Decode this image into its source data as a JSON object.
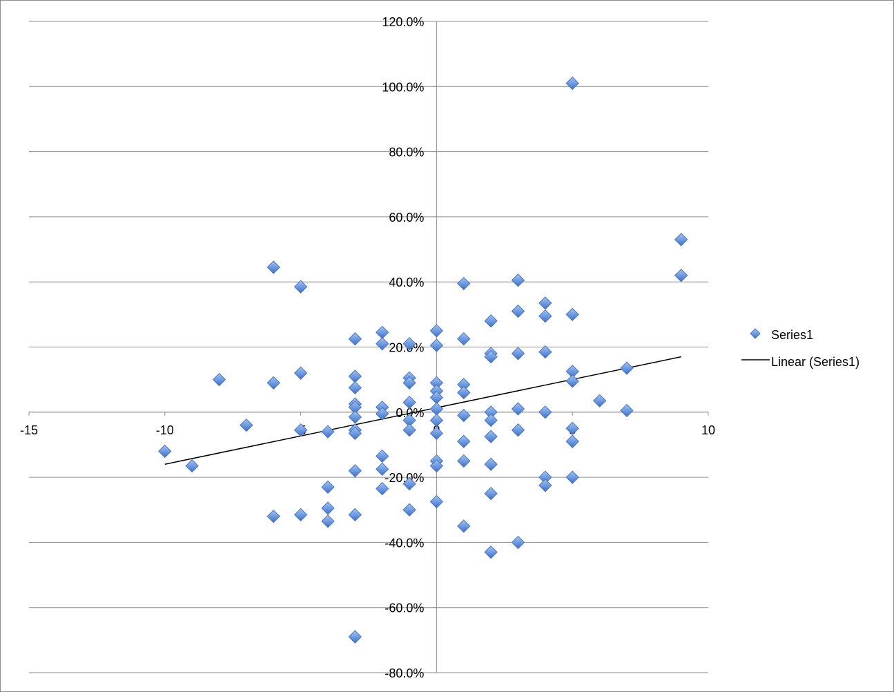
{
  "chart_data": {
    "type": "scatter",
    "title": "",
    "xlabel": "",
    "ylabel": "",
    "xlim": [
      -15,
      10
    ],
    "ylim": [
      -0.8,
      1.2
    ],
    "x_ticks": [
      -15,
      -10,
      -5,
      0,
      5,
      10
    ],
    "x_tick_labels": [
      "-15",
      "-10",
      "-5",
      "0",
      "5",
      "10"
    ],
    "y_ticks": [
      1.2,
      1.0,
      0.8,
      0.6,
      0.4,
      0.2,
      0.0,
      -0.2,
      -0.4,
      -0.6,
      -0.8
    ],
    "y_tick_labels": [
      "120.0%",
      "100.0%",
      "80.0%",
      "60.0%",
      "40.0%",
      "20.0%",
      "0.0%",
      "-20.0%",
      "-40.0%",
      "-60.0%",
      "-80.0%"
    ],
    "grid": "horizontal",
    "legend_position": "right",
    "series": [
      {
        "name": "Series1",
        "marker": "diamond",
        "color": "#5b8fd9",
        "points": [
          [
            5,
            1.01
          ],
          [
            9,
            0.53
          ],
          [
            9,
            0.42
          ],
          [
            -6,
            0.445
          ],
          [
            -5,
            0.385
          ],
          [
            1,
            0.395
          ],
          [
            3,
            0.405
          ],
          [
            4,
            0.335
          ],
          [
            3,
            0.31
          ],
          [
            4,
            0.295
          ],
          [
            5,
            0.3
          ],
          [
            2,
            0.28
          ],
          [
            0,
            0.25
          ],
          [
            -2,
            0.245
          ],
          [
            -3,
            0.225
          ],
          [
            1,
            0.225
          ],
          [
            -2,
            0.21
          ],
          [
            -1,
            0.21
          ],
          [
            0,
            0.205
          ],
          [
            2,
            0.18
          ],
          [
            2,
            0.17
          ],
          [
            3,
            0.18
          ],
          [
            4,
            0.185
          ],
          [
            7,
            0.135
          ],
          [
            5,
            0.125
          ],
          [
            -5,
            0.12
          ],
          [
            -8,
            0.1
          ],
          [
            -6,
            0.09
          ],
          [
            -3,
            0.11
          ],
          [
            -1,
            0.105
          ],
          [
            -1,
            0.09
          ],
          [
            0,
            0.09
          ],
          [
            1,
            0.085
          ],
          [
            5,
            0.095
          ],
          [
            -3,
            0.075
          ],
          [
            0,
            0.065
          ],
          [
            1,
            0.06
          ],
          [
            0,
            0.045
          ],
          [
            -1,
            0.03
          ],
          [
            6,
            0.035
          ],
          [
            -3,
            0.025
          ],
          [
            -3,
            0.015
          ],
          [
            -2,
            0.015
          ],
          [
            0,
            0.01
          ],
          [
            3,
            0.01
          ],
          [
            7,
            0.005
          ],
          [
            2,
            0.0
          ],
          [
            4,
            0.0
          ],
          [
            -2,
            -0.005
          ],
          [
            1,
            -0.01
          ],
          [
            -3,
            -0.015
          ],
          [
            0,
            -0.025
          ],
          [
            -1,
            -0.025
          ],
          [
            2,
            -0.025
          ],
          [
            -7,
            -0.04
          ],
          [
            5,
            -0.05
          ],
          [
            -5,
            -0.055
          ],
          [
            -3,
            -0.055
          ],
          [
            -4,
            -0.06
          ],
          [
            -1,
            -0.055
          ],
          [
            3,
            -0.055
          ],
          [
            -3,
            -0.065
          ],
          [
            0,
            -0.065
          ],
          [
            2,
            -0.075
          ],
          [
            1,
            -0.09
          ],
          [
            5,
            -0.09
          ],
          [
            -10,
            -0.12
          ],
          [
            -2,
            -0.135
          ],
          [
            0,
            -0.15
          ],
          [
            1,
            -0.15
          ],
          [
            0,
            -0.165
          ],
          [
            2,
            -0.16
          ],
          [
            -9,
            -0.165
          ],
          [
            -2,
            -0.175
          ],
          [
            -3,
            -0.18
          ],
          [
            4,
            -0.2
          ],
          [
            5,
            -0.2
          ],
          [
            -1,
            -0.22
          ],
          [
            4,
            -0.225
          ],
          [
            -4,
            -0.23
          ],
          [
            -2,
            -0.235
          ],
          [
            2,
            -0.25
          ],
          [
            0,
            -0.275
          ],
          [
            -4,
            -0.295
          ],
          [
            -1,
            -0.3
          ],
          [
            -6,
            -0.32
          ],
          [
            -5,
            -0.315
          ],
          [
            -3,
            -0.315
          ],
          [
            -4,
            -0.335
          ],
          [
            1,
            -0.35
          ],
          [
            3,
            -0.4
          ],
          [
            2,
            -0.43
          ],
          [
            -3,
            -0.69
          ]
        ]
      }
    ],
    "trendline": {
      "name": "Linear (Series1)",
      "type": "linear",
      "color": "#000000",
      "x_range": [
        -10,
        9
      ],
      "y_range": [
        -0.16,
        0.17
      ]
    }
  }
}
